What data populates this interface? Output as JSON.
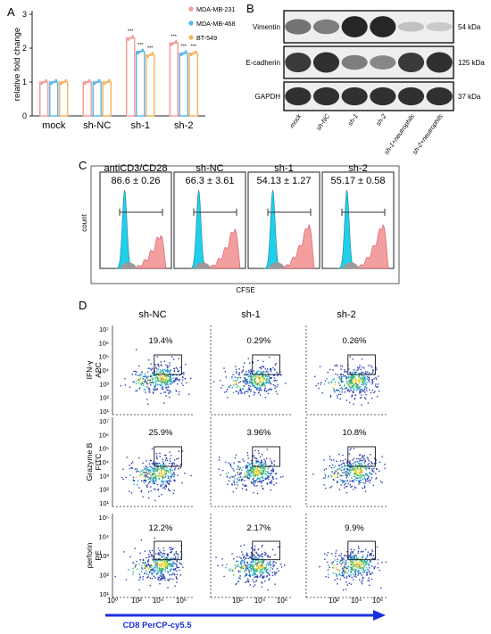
{
  "panels": {
    "a": "A",
    "b": "B",
    "c": "C",
    "d": "D"
  },
  "colors": {
    "series1": "#f29a9a",
    "series2": "#5bb3e6",
    "series3": "#f5b25c",
    "histo_cyan": "#1fd0e8",
    "histo_red": "#f29595",
    "arrow_blue": "#1a2fe0"
  },
  "chart_data": [
    {
      "type": "bar",
      "ylabel": "relative fold change",
      "ylim": [
        0,
        3
      ],
      "yticks": [
        "0",
        "1",
        "2",
        "3"
      ],
      "categories": [
        "mock",
        "sh-NC",
        "sh-1",
        "sh-2"
      ],
      "series": [
        {
          "name": "MDA-MB-231",
          "values": [
            1.0,
            1.0,
            2.3,
            2.15
          ]
        },
        {
          "name": "MDA-MB-468",
          "values": [
            1.0,
            1.0,
            1.9,
            1.85
          ]
        },
        {
          "name": "BT-549",
          "values": [
            1.0,
            1.0,
            1.8,
            1.85
          ]
        }
      ],
      "significance": "***"
    }
  ],
  "western": {
    "rows": [
      {
        "label": "Vimentin",
        "kda": "54 kDa",
        "intensity": [
          0.55,
          0.5,
          0.95,
          0.95,
          0.15,
          0.1
        ]
      },
      {
        "label": "E-cadherin",
        "kda": "125 kDa",
        "intensity": [
          0.85,
          0.9,
          0.5,
          0.45,
          0.85,
          0.9
        ]
      },
      {
        "label": "GAPDH",
        "kda": "37 kDa",
        "intensity": [
          0.9,
          0.9,
          0.9,
          0.9,
          0.9,
          0.9
        ]
      }
    ],
    "lanes": [
      "mock",
      "sh-NC",
      "sh-1",
      "sh-2",
      "sh-1+neutrophils",
      "sh-2+neutrophils"
    ]
  },
  "cfse": {
    "titles": [
      "antiCD3/CD28",
      "sh-NC",
      "sh-1",
      "sh-2"
    ],
    "values": [
      "86.6 ± 0.26",
      "66.3 ± 3.61",
      "54.13 ± 1.27",
      "55.17 ± 0.58"
    ],
    "ylabel": "count",
    "xlabel": "CFSE"
  },
  "flow": {
    "columns": [
      "sh-NC",
      "sh-1",
      "sh-2"
    ],
    "rows": [
      {
        "label1": "IFN-γ",
        "label2": "APC",
        "values": [
          "19.4%",
          "0.29%",
          "0.26%"
        ],
        "yticks": [
          "10⁷",
          "10⁶",
          "10⁵",
          "10⁴",
          "10³",
          "10²",
          "10¹"
        ]
      },
      {
        "label1": "Grazyme B",
        "label2": "FITC",
        "values": [
          "25.9%",
          "3.96%",
          "10.8%"
        ],
        "yticks": [
          "10⁷",
          "10⁶",
          "10⁵",
          "10⁴",
          "10³",
          "10²",
          "10¹"
        ]
      },
      {
        "label1": "perforin",
        "label2": "PE",
        "values": [
          "12.2%",
          "2.17%",
          "9.9%"
        ],
        "yticks": [
          "10⁵",
          "10⁴",
          "10³",
          "10²",
          "10¹"
        ]
      }
    ],
    "xticks": [
      "10⁰",
      "10²",
      "10⁴",
      "10⁶",
      "10²",
      "10⁴",
      "10⁶",
      "10²",
      "10⁴",
      "10⁶"
    ],
    "xlabel": "CD8 PerCP-cy5.5"
  }
}
